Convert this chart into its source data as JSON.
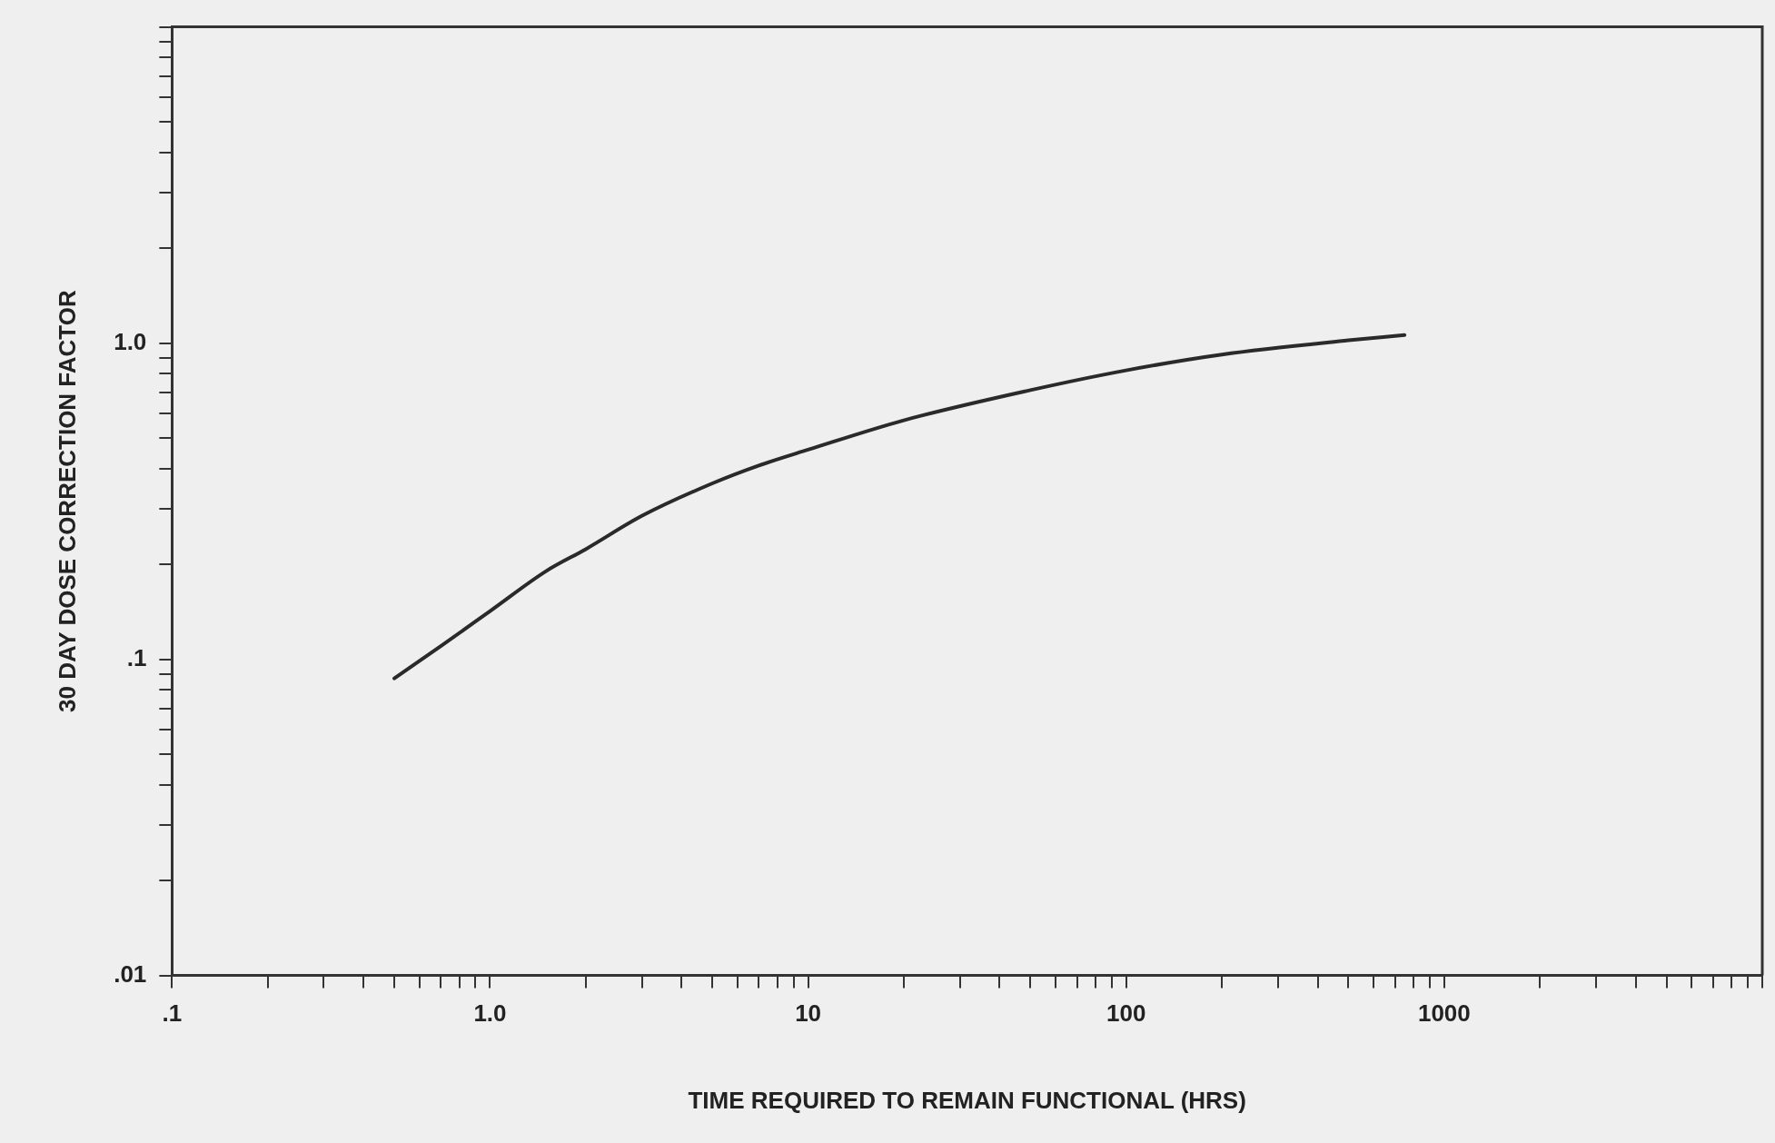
{
  "chart_data": {
    "type": "line",
    "xlabel": "TIME REQUIRED TO REMAIN FUNCTIONAL (HRS)",
    "ylabel": "30 DAY DOSE CORRECTION FACTOR",
    "log": "xy",
    "grid": false,
    "legend": false,
    "marker": "none",
    "line_style": "solid",
    "x": [
      0.5,
      0.7,
      1,
      1.5,
      2,
      3,
      5,
      7,
      10,
      20,
      50,
      100,
      200,
      500,
      750
    ],
    "series": [
      {
        "color": "#2a2a2a",
        "values": [
          0.087,
          0.11,
          0.142,
          0.19,
          0.223,
          0.284,
          0.36,
          0.41,
          0.46,
          0.57,
          0.71,
          0.82,
          0.92,
          1.02,
          1.06
        ]
      }
    ],
    "xlim": [
      0.1,
      10000
    ],
    "ylim": [
      0.01,
      10
    ],
    "xticks": [
      {
        "value": 0.1,
        "label": ".1"
      },
      {
        "value": 0.2,
        "label": null
      },
      {
        "value": 0.3,
        "label": null
      },
      {
        "value": 0.4,
        "label": null
      },
      {
        "value": 0.5,
        "label": null
      },
      {
        "value": 0.6,
        "label": null
      },
      {
        "value": 0.7,
        "label": null
      },
      {
        "value": 0.8,
        "label": null
      },
      {
        "value": 0.9,
        "label": null
      },
      {
        "value": 1,
        "label": "1.0"
      },
      {
        "value": 2,
        "label": null
      },
      {
        "value": 3,
        "label": null
      },
      {
        "value": 4,
        "label": null
      },
      {
        "value": 5,
        "label": null
      },
      {
        "value": 6,
        "label": null
      },
      {
        "value": 7,
        "label": null
      },
      {
        "value": 8,
        "label": null
      },
      {
        "value": 9,
        "label": null
      },
      10,
      {
        "value": 20,
        "label": null
      },
      {
        "value": 30,
        "label": null
      },
      {
        "value": 40,
        "label": null
      },
      {
        "value": 50,
        "label": null
      },
      {
        "value": 60,
        "label": null
      },
      {
        "value": 70,
        "label": null
      },
      {
        "value": 80,
        "label": null
      },
      {
        "value": 90,
        "label": null
      },
      100,
      {
        "value": 200,
        "label": null
      },
      {
        "value": 300,
        "label": null
      },
      {
        "value": 400,
        "label": null
      },
      {
        "value": 500,
        "label": null
      },
      {
        "value": 600,
        "label": null
      },
      {
        "value": 700,
        "label": null
      },
      {
        "value": 800,
        "label": null
      },
      {
        "value": 900,
        "label": null
      },
      1000,
      {
        "value": 2000,
        "label": null
      },
      {
        "value": 3000,
        "label": null
      },
      {
        "value": 4000,
        "label": null
      },
      {
        "value": 5000,
        "label": null
      },
      {
        "value": 6000,
        "label": null
      },
      {
        "value": 7000,
        "label": null
      },
      {
        "value": 8000,
        "label": null
      },
      {
        "value": 9000,
        "label": null
      },
      {
        "value": 10000,
        "label": null
      }
    ],
    "yticks": [
      {
        "value": 0.01,
        "label": ".01"
      },
      {
        "value": 0.02,
        "label": null
      },
      {
        "value": 0.03,
        "label": null
      },
      {
        "value": 0.04,
        "label": null
      },
      {
        "value": 0.05,
        "label": null
      },
      {
        "value": 0.06,
        "label": null
      },
      {
        "value": 0.07,
        "label": null
      },
      {
        "value": 0.08,
        "label": null
      },
      {
        "value": 0.09,
        "label": null
      },
      {
        "value": 0.1,
        "label": ".1"
      },
      {
        "value": 0.2,
        "label": null
      },
      {
        "value": 0.3,
        "label": null
      },
      {
        "value": 0.4,
        "label": null
      },
      {
        "value": 0.5,
        "label": null
      },
      {
        "value": 0.6,
        "label": null
      },
      {
        "value": 0.7,
        "label": null
      },
      {
        "value": 0.8,
        "label": null
      },
      {
        "value": 0.9,
        "label": null
      },
      {
        "value": 1,
        "label": "1.0"
      },
      {
        "value": 2,
        "label": null
      },
      {
        "value": 3,
        "label": null
      },
      {
        "value": 4,
        "label": null
      },
      {
        "value": 5,
        "label": null
      },
      {
        "value": 6,
        "label": null
      },
      {
        "value": 7,
        "label": null
      },
      {
        "value": 8,
        "label": null
      },
      {
        "value": 9,
        "label": null
      },
      {
        "value": 10,
        "label": null
      }
    ]
  }
}
